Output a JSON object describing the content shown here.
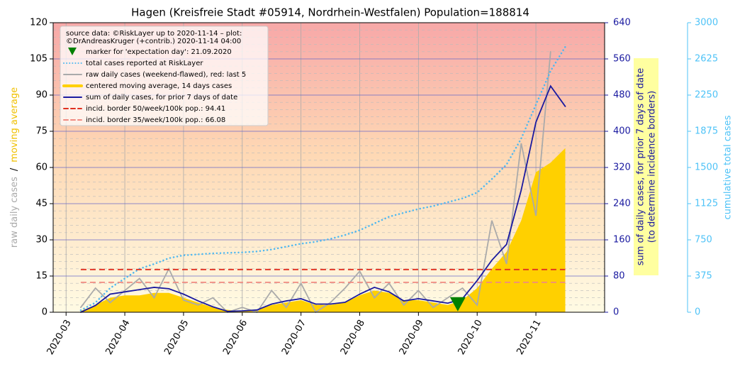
{
  "chart_data": {
    "type": "line",
    "title": "Hagen (Kreisfreie Stadt #05914, Nordrhein-Westfalen) Population=188814",
    "source": [
      "source data: ©RiskLayer up to 2020-11-14 – plot:",
      "©DrAndreasKruger (+contrib.) 2020-11-14 04:00"
    ],
    "ylabel": [
      "raw daily cases",
      "/",
      "moving average"
    ],
    "y2label": [
      "sum of daily cases, for prior 7 days of date",
      "(to determine incidence borders)"
    ],
    "y3label": "cumulative total cases",
    "x": [
      3.0,
      3.25,
      3.5,
      3.75,
      4.0,
      4.25,
      4.5,
      4.75,
      5.0,
      5.25,
      5.5,
      5.75,
      6.0,
      6.25,
      6.5,
      6.75,
      7.0,
      7.25,
      7.5,
      7.75,
      8.0,
      8.25,
      8.5,
      8.75,
      9.0,
      9.25,
      9.5,
      9.75,
      10.0,
      10.25,
      10.5,
      10.75,
      11.0,
      11.25,
      11.5
    ],
    "xlim": [
      2.78,
      12.17
    ],
    "xticks": [
      {
        "value": 3,
        "label": "2020-03"
      },
      {
        "value": 4,
        "label": "2020-04"
      },
      {
        "value": 5,
        "label": "2020-05"
      },
      {
        "value": 6,
        "label": "2020-06"
      },
      {
        "value": 7,
        "label": "2020-07"
      },
      {
        "value": 8,
        "label": "2020-08"
      },
      {
        "value": 9,
        "label": "2020-09"
      },
      {
        "value": 10,
        "label": "2020-10"
      },
      {
        "value": 11,
        "label": "2020-11"
      }
    ],
    "ylim": [
      0,
      120
    ],
    "yticks": [
      0,
      15,
      30,
      45,
      60,
      75,
      90,
      105,
      120
    ],
    "y2lim": [
      0,
      640
    ],
    "y2ticks": [
      0,
      80,
      160,
      240,
      320,
      400,
      480,
      560,
      640
    ],
    "y3lim": [
      0,
      3000
    ],
    "y3ticks": [
      0,
      375,
      750,
      1125,
      1500,
      1875,
      2250,
      2625,
      3000
    ],
    "grid": true,
    "series": [
      {
        "name": "marker for 'expectation day': 21.09.2020",
        "style": "marker",
        "color": "#008000",
        "x": [
          9.67
        ],
        "values": [
          3
        ]
      },
      {
        "name": "total cases reported at RiskLayer",
        "style": "dotted",
        "color": "#4fb8f0",
        "axis": "y3",
        "values": [
          null,
          20,
          100,
          250,
          350,
          450,
          500,
          560,
          590,
          600,
          610,
          615,
          620,
          630,
          650,
          680,
          710,
          730,
          760,
          800,
          850,
          920,
          990,
          1030,
          1070,
          1100,
          1140,
          1180,
          1240,
          1380,
          1530,
          1800,
          2150,
          2500,
          2750
        ]
      },
      {
        "name": "raw daily cases (weekend-flawed), red: last 5",
        "style": "line",
        "color": "#aaaaaa",
        "values": [
          null,
          2,
          10,
          4,
          9,
          14,
          6,
          18,
          5,
          3,
          6,
          0,
          2,
          0,
          9,
          2,
          12,
          0,
          4,
          10,
          17,
          6,
          12,
          3,
          9,
          2,
          6,
          10,
          3,
          38,
          20,
          70,
          40,
          108,
          null
        ]
      },
      {
        "name": "centered moving average, 14 days cases",
        "style": "area",
        "color": "#ffd000",
        "values": [
          null,
          0.5,
          3,
          6,
          7,
          7,
          8,
          8,
          6,
          4,
          2,
          1,
          0.5,
          1,
          3,
          4,
          5,
          3,
          3,
          4,
          7,
          9,
          8,
          5,
          5,
          4,
          3,
          5,
          10,
          18,
          25,
          38,
          58,
          62,
          68
        ]
      },
      {
        "name": "sum of daily cases, for prior 7 days of date",
        "style": "line",
        "color": "#1a1aa0",
        "axis": "y2",
        "values": [
          null,
          0,
          15,
          40,
          45,
          50,
          55,
          52,
          40,
          25,
          12,
          2,
          3,
          5,
          18,
          25,
          30,
          18,
          18,
          22,
          40,
          55,
          45,
          25,
          30,
          25,
          20,
          30,
          70,
          115,
          150,
          270,
          420,
          500,
          455
        ]
      },
      {
        "name": "incid. border 50/week/100k pop.: 94.41",
        "style": "dashed",
        "color": "#e03020",
        "axis": "y2",
        "value": 94.41
      },
      {
        "name": "incid. border 35/week/100k pop.: 66.08",
        "style": "dashed",
        "color": "#f08a80",
        "axis": "y2",
        "value": 66.08
      }
    ]
  }
}
